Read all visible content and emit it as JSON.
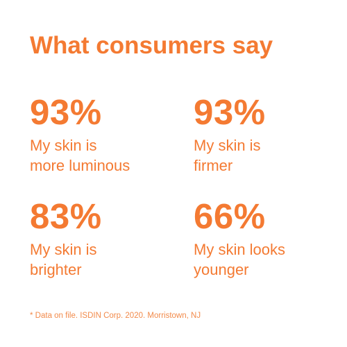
{
  "title": "What consumers say",
  "stats": [
    {
      "value": "93%",
      "label_line1": "My skin is",
      "label_line2": "more luminous"
    },
    {
      "value": "93%",
      "label_line1": "My skin is",
      "label_line2": "firmer"
    },
    {
      "value": "83%",
      "label_line1": "My skin is",
      "label_line2": "brighter"
    },
    {
      "value": "66%",
      "label_line1": "My skin looks",
      "label_line2": "younger"
    }
  ],
  "footnote": "* Data on file. ISDIN Corp. 2020. Morristown, NJ",
  "colors": {
    "accent": "#F47A32",
    "footnote": "#F28A4A",
    "background": "#FFFFFF"
  }
}
